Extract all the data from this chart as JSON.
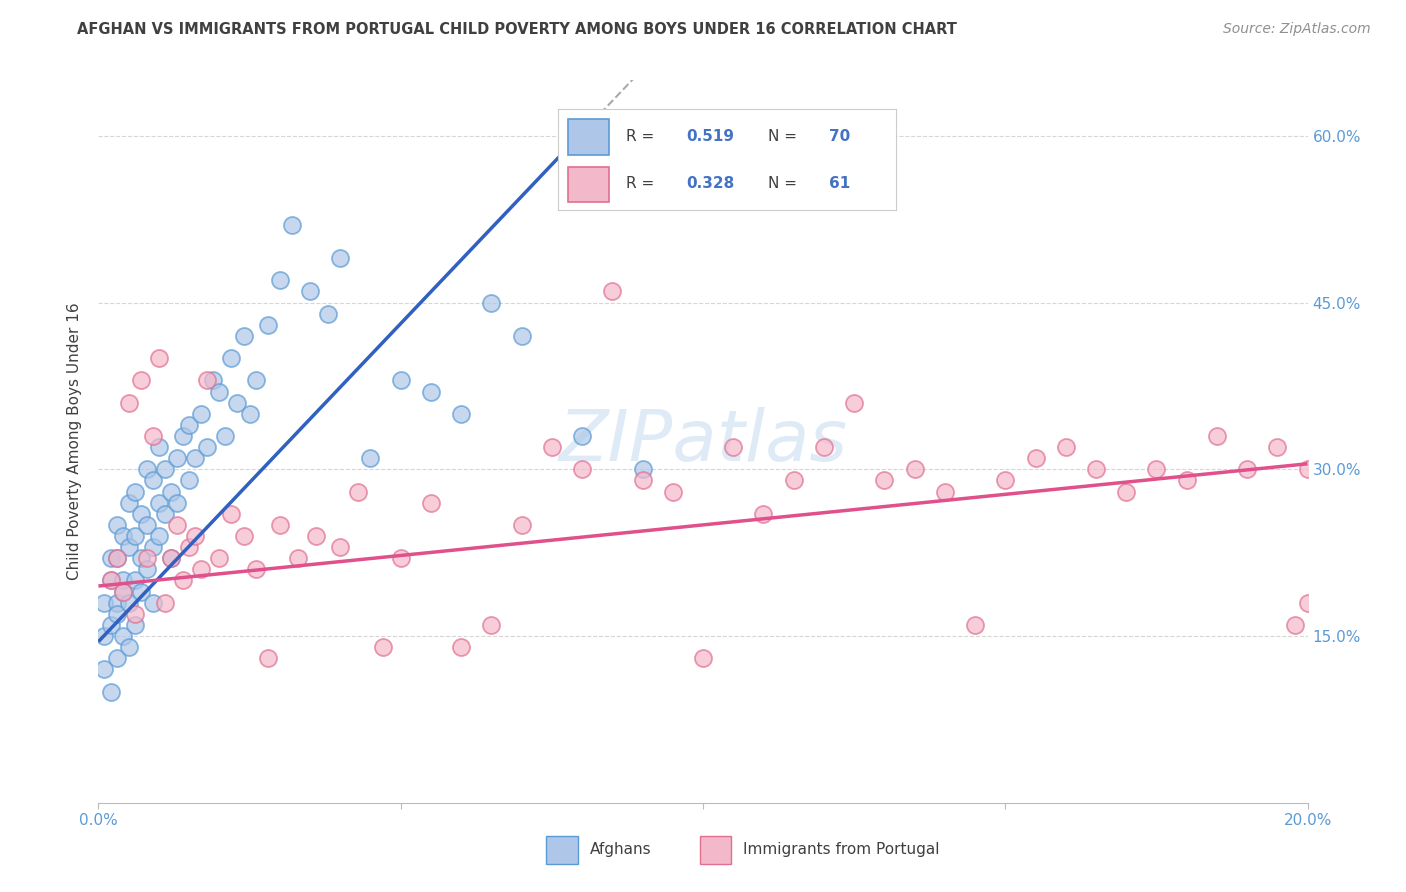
{
  "title": "AFGHAN VS IMMIGRANTS FROM PORTUGAL CHILD POVERTY AMONG BOYS UNDER 16 CORRELATION CHART",
  "source": "Source: ZipAtlas.com",
  "ylabel": "Child Poverty Among Boys Under 16",
  "xlabel_afghans": "Afghans",
  "xlabel_portugal": "Immigrants from Portugal",
  "xlim": [
    0,
    0.2
  ],
  "ylim": [
    0,
    0.65
  ],
  "yticks_right": [
    0.15,
    0.3,
    0.45,
    0.6
  ],
  "ytick_labels_right": [
    "15.0%",
    "30.0%",
    "45.0%",
    "60.0%"
  ],
  "afghan_color": "#aec6e8",
  "portugal_color": "#f4b8cb",
  "afghan_edge_color": "#5b9bd5",
  "portugal_edge_color": "#e07090",
  "regression_afghan_color": "#3060c0",
  "regression_portugal_color": "#e0508a",
  "watermark": "ZIPatlas",
  "R_afghan": 0.519,
  "N_afghan": 70,
  "R_portugal": 0.328,
  "N_portugal": 61,
  "background_color": "#ffffff",
  "grid_color": "#cccccc",
  "title_color": "#404040",
  "source_color": "#909090",
  "axis_label_color": "#404040",
  "tick_label_color": "#5b9bd5",
  "legend_r_color": "#4472c4",
  "afghan_scatter_x": [
    0.001,
    0.001,
    0.001,
    0.002,
    0.002,
    0.002,
    0.002,
    0.003,
    0.003,
    0.003,
    0.003,
    0.003,
    0.004,
    0.004,
    0.004,
    0.004,
    0.005,
    0.005,
    0.005,
    0.005,
    0.006,
    0.006,
    0.006,
    0.006,
    0.007,
    0.007,
    0.007,
    0.008,
    0.008,
    0.008,
    0.009,
    0.009,
    0.009,
    0.01,
    0.01,
    0.01,
    0.011,
    0.011,
    0.012,
    0.012,
    0.013,
    0.013,
    0.014,
    0.015,
    0.015,
    0.016,
    0.017,
    0.018,
    0.019,
    0.02,
    0.021,
    0.022,
    0.023,
    0.024,
    0.025,
    0.026,
    0.028,
    0.03,
    0.032,
    0.035,
    0.038,
    0.04,
    0.045,
    0.05,
    0.055,
    0.06,
    0.065,
    0.07,
    0.08,
    0.09
  ],
  "afghan_scatter_y": [
    0.15,
    0.18,
    0.12,
    0.2,
    0.16,
    0.1,
    0.22,
    0.18,
    0.22,
    0.25,
    0.13,
    0.17,
    0.2,
    0.15,
    0.24,
    0.19,
    0.23,
    0.18,
    0.27,
    0.14,
    0.24,
    0.2,
    0.28,
    0.16,
    0.22,
    0.26,
    0.19,
    0.25,
    0.21,
    0.3,
    0.23,
    0.29,
    0.18,
    0.27,
    0.24,
    0.32,
    0.26,
    0.3,
    0.28,
    0.22,
    0.31,
    0.27,
    0.33,
    0.29,
    0.34,
    0.31,
    0.35,
    0.32,
    0.38,
    0.37,
    0.33,
    0.4,
    0.36,
    0.42,
    0.35,
    0.38,
    0.43,
    0.47,
    0.52,
    0.46,
    0.44,
    0.49,
    0.31,
    0.38,
    0.37,
    0.35,
    0.45,
    0.42,
    0.33,
    0.3
  ],
  "portugal_scatter_x": [
    0.002,
    0.003,
    0.004,
    0.005,
    0.006,
    0.007,
    0.008,
    0.009,
    0.01,
    0.011,
    0.012,
    0.013,
    0.014,
    0.015,
    0.016,
    0.017,
    0.018,
    0.02,
    0.022,
    0.024,
    0.026,
    0.028,
    0.03,
    0.033,
    0.036,
    0.04,
    0.043,
    0.047,
    0.05,
    0.055,
    0.06,
    0.065,
    0.07,
    0.075,
    0.08,
    0.085,
    0.09,
    0.095,
    0.1,
    0.105,
    0.11,
    0.115,
    0.12,
    0.125,
    0.13,
    0.135,
    0.14,
    0.145,
    0.15,
    0.155,
    0.16,
    0.165,
    0.17,
    0.175,
    0.18,
    0.185,
    0.19,
    0.195,
    0.198,
    0.2,
    0.2
  ],
  "portugal_scatter_y": [
    0.2,
    0.22,
    0.19,
    0.36,
    0.17,
    0.38,
    0.22,
    0.33,
    0.4,
    0.18,
    0.22,
    0.25,
    0.2,
    0.23,
    0.24,
    0.21,
    0.38,
    0.22,
    0.26,
    0.24,
    0.21,
    0.13,
    0.25,
    0.22,
    0.24,
    0.23,
    0.28,
    0.14,
    0.22,
    0.27,
    0.14,
    0.16,
    0.25,
    0.32,
    0.3,
    0.46,
    0.29,
    0.28,
    0.13,
    0.32,
    0.26,
    0.29,
    0.32,
    0.36,
    0.29,
    0.3,
    0.28,
    0.16,
    0.29,
    0.31,
    0.32,
    0.3,
    0.28,
    0.3,
    0.29,
    0.33,
    0.3,
    0.32,
    0.16,
    0.3,
    0.18
  ],
  "af_line_x0": 0.0,
  "af_line_y0": 0.145,
  "af_line_x1": 0.083,
  "af_line_y1": 0.62,
  "pt_line_x0": 0.0,
  "pt_line_y0": 0.195,
  "pt_line_x1": 0.2,
  "pt_line_y1": 0.305
}
